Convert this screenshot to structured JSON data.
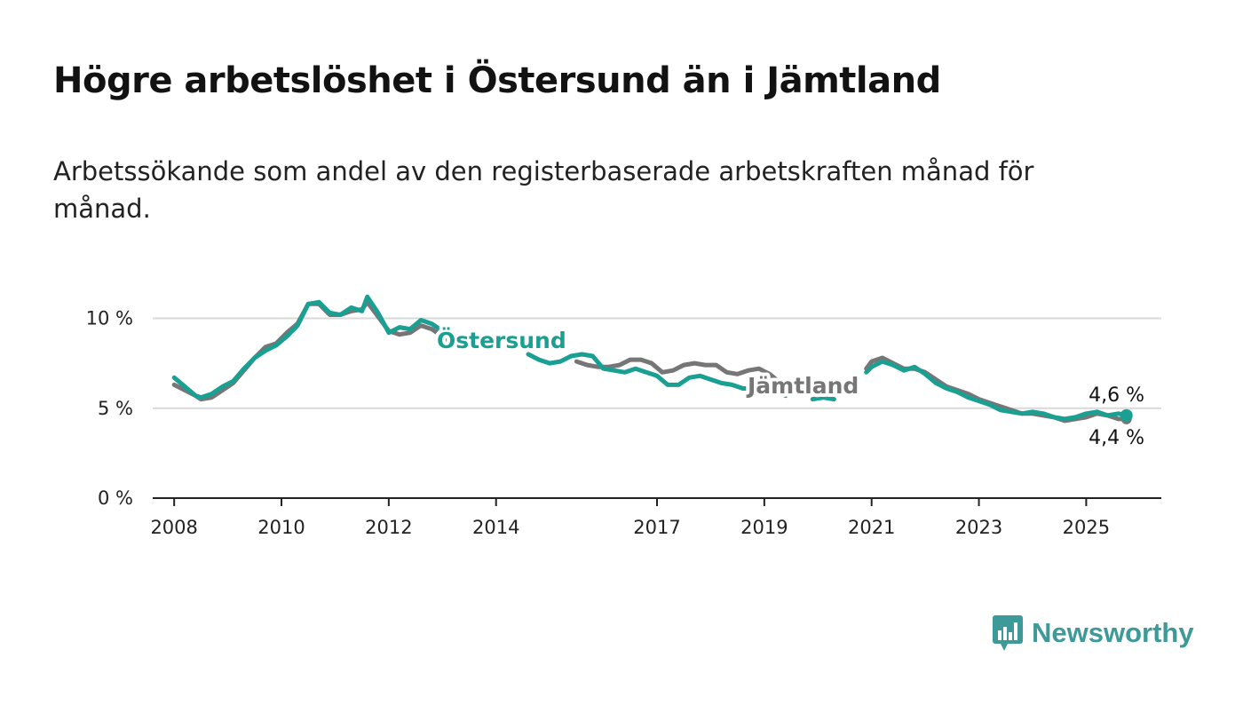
{
  "title": "Högre arbetslöshet i Östersund än i Jämtland",
  "subtitle": "Arbetssökande som andel av den registerbaserade arbetskraften månad för månad.",
  "brand": {
    "name": "Newsworthy",
    "color": "#3d9a98"
  },
  "chart_data": {
    "type": "line",
    "title": "Högre arbetslöshet i Östersund än i Jämtland",
    "xlabel": "",
    "ylabel": "",
    "ylim": [
      0,
      12
    ],
    "xlim": [
      2007.6,
      2026.4
    ],
    "y_ticks": [
      0,
      5,
      10
    ],
    "y_tick_labels": [
      "0 %",
      "5 %",
      "10 %"
    ],
    "x_ticks": [
      2008,
      2010,
      2012,
      2014,
      2017,
      2019,
      2021,
      2023,
      2025
    ],
    "x_tick_labels": [
      "2008",
      "2010",
      "2012",
      "2014",
      "2017",
      "2019",
      "2021",
      "2023",
      "2025"
    ],
    "grid": true,
    "legend": "inline",
    "series": [
      {
        "name": "Jämtland",
        "color": "#767676",
        "end_value_label": "4,4 %",
        "points": [
          [
            2008.0,
            6.3
          ],
          [
            2008.2,
            6.0
          ],
          [
            2008.4,
            5.7
          ],
          [
            2008.5,
            5.5
          ],
          [
            2008.7,
            5.6
          ],
          [
            2008.9,
            6.0
          ],
          [
            2009.1,
            6.4
          ],
          [
            2009.3,
            7.1
          ],
          [
            2009.5,
            7.8
          ],
          [
            2009.7,
            8.4
          ],
          [
            2009.9,
            8.6
          ],
          [
            2010.1,
            9.2
          ],
          [
            2010.3,
            9.7
          ],
          [
            2010.5,
            10.8
          ],
          [
            2010.7,
            10.8
          ],
          [
            2010.9,
            10.2
          ],
          [
            2011.1,
            10.2
          ],
          [
            2011.3,
            10.4
          ],
          [
            2011.5,
            10.5
          ],
          [
            2011.6,
            10.9
          ],
          [
            2011.8,
            10.1
          ],
          [
            2012.0,
            9.3
          ],
          [
            2012.2,
            9.1
          ],
          [
            2012.4,
            9.2
          ],
          [
            2012.6,
            9.6
          ],
          [
            2012.8,
            9.4
          ],
          [
            2013.0,
            9.0
          ],
          [
            2013.2,
            8.5
          ],
          null,
          [
            2015.5,
            7.6
          ],
          [
            2015.7,
            7.4
          ],
          [
            2015.9,
            7.3
          ],
          [
            2016.1,
            7.3
          ],
          [
            2016.3,
            7.4
          ],
          [
            2016.5,
            7.7
          ],
          [
            2016.7,
            7.7
          ],
          [
            2016.9,
            7.5
          ],
          [
            2017.1,
            7.0
          ],
          [
            2017.3,
            7.1
          ],
          [
            2017.5,
            7.4
          ],
          [
            2017.7,
            7.5
          ],
          [
            2017.9,
            7.4
          ],
          [
            2018.1,
            7.4
          ],
          [
            2018.3,
            7.0
          ],
          [
            2018.5,
            6.9
          ],
          [
            2018.7,
            7.1
          ],
          [
            2018.9,
            7.2
          ],
          [
            2019.1,
            6.9
          ],
          [
            2019.3,
            6.4
          ],
          null,
          [
            2020.9,
            7.2
          ],
          [
            2021.0,
            7.6
          ],
          [
            2021.2,
            7.8
          ],
          [
            2021.4,
            7.5
          ],
          [
            2021.6,
            7.2
          ],
          [
            2021.8,
            7.2
          ],
          [
            2022.0,
            7.0
          ],
          [
            2022.2,
            6.6
          ],
          [
            2022.4,
            6.2
          ],
          [
            2022.6,
            6.0
          ],
          [
            2022.8,
            5.8
          ],
          [
            2023.0,
            5.5
          ],
          [
            2023.2,
            5.3
          ],
          [
            2023.4,
            5.1
          ],
          [
            2023.6,
            4.9
          ],
          [
            2023.8,
            4.7
          ],
          [
            2024.0,
            4.7
          ],
          [
            2024.2,
            4.6
          ],
          [
            2024.4,
            4.5
          ],
          [
            2024.6,
            4.3
          ],
          [
            2024.8,
            4.4
          ],
          [
            2025.0,
            4.5
          ],
          [
            2025.2,
            4.7
          ],
          [
            2025.4,
            4.6
          ],
          [
            2025.6,
            4.4
          ],
          [
            2025.75,
            4.4
          ]
        ]
      },
      {
        "name": "Östersund",
        "color": "#1aa093",
        "end_value_label": "4,6 %",
        "points": [
          [
            2008.0,
            6.7
          ],
          [
            2008.2,
            6.2
          ],
          [
            2008.4,
            5.7
          ],
          [
            2008.5,
            5.6
          ],
          [
            2008.7,
            5.8
          ],
          [
            2008.9,
            6.2
          ],
          [
            2009.1,
            6.5
          ],
          [
            2009.3,
            7.2
          ],
          [
            2009.5,
            7.8
          ],
          [
            2009.7,
            8.2
          ],
          [
            2009.9,
            8.5
          ],
          [
            2010.1,
            9.0
          ],
          [
            2010.3,
            9.6
          ],
          [
            2010.5,
            10.8
          ],
          [
            2010.7,
            10.9
          ],
          [
            2010.9,
            10.3
          ],
          [
            2011.1,
            10.2
          ],
          [
            2011.3,
            10.6
          ],
          [
            2011.5,
            10.4
          ],
          [
            2011.6,
            11.2
          ],
          [
            2011.8,
            10.3
          ],
          [
            2012.0,
            9.2
          ],
          [
            2012.2,
            9.5
          ],
          [
            2012.4,
            9.4
          ],
          [
            2012.6,
            9.9
          ],
          [
            2012.8,
            9.7
          ],
          [
            2013.0,
            9.3
          ],
          [
            2013.2,
            8.6
          ],
          null,
          [
            2014.6,
            8.0
          ],
          [
            2014.8,
            7.7
          ],
          [
            2015.0,
            7.5
          ],
          [
            2015.2,
            7.6
          ],
          [
            2015.4,
            7.9
          ],
          [
            2015.6,
            8.0
          ],
          [
            2015.8,
            7.9
          ],
          [
            2016.0,
            7.2
          ],
          [
            2016.2,
            7.1
          ],
          [
            2016.4,
            7.0
          ],
          [
            2016.6,
            7.2
          ],
          [
            2016.8,
            7.0
          ],
          [
            2017.0,
            6.8
          ],
          [
            2017.2,
            6.3
          ],
          [
            2017.4,
            6.3
          ],
          [
            2017.6,
            6.7
          ],
          [
            2017.8,
            6.8
          ],
          [
            2018.0,
            6.6
          ],
          [
            2018.2,
            6.4
          ],
          [
            2018.4,
            6.3
          ],
          [
            2018.6,
            6.1
          ],
          [
            2018.8,
            6.1
          ],
          [
            2019.0,
            6.2
          ],
          [
            2019.2,
            6.0
          ],
          [
            2019.4,
            5.7
          ],
          null,
          [
            2019.9,
            5.5
          ],
          [
            2020.1,
            5.6
          ],
          [
            2020.3,
            5.5
          ],
          null,
          [
            2020.9,
            7.0
          ],
          [
            2021.0,
            7.3
          ],
          [
            2021.2,
            7.6
          ],
          [
            2021.4,
            7.4
          ],
          [
            2021.6,
            7.1
          ],
          [
            2021.8,
            7.3
          ],
          [
            2022.0,
            6.9
          ],
          [
            2022.2,
            6.4
          ],
          [
            2022.4,
            6.1
          ],
          [
            2022.6,
            5.9
          ],
          [
            2022.8,
            5.6
          ],
          [
            2023.0,
            5.4
          ],
          [
            2023.2,
            5.2
          ],
          [
            2023.4,
            4.9
          ],
          [
            2023.6,
            4.8
          ],
          [
            2023.8,
            4.7
          ],
          [
            2024.0,
            4.8
          ],
          [
            2024.2,
            4.7
          ],
          [
            2024.4,
            4.5
          ],
          [
            2024.6,
            4.4
          ],
          [
            2024.8,
            4.5
          ],
          [
            2025.0,
            4.7
          ],
          [
            2025.2,
            4.8
          ],
          [
            2025.4,
            4.6
          ],
          [
            2025.6,
            4.7
          ],
          [
            2025.75,
            4.6
          ]
        ]
      }
    ]
  }
}
